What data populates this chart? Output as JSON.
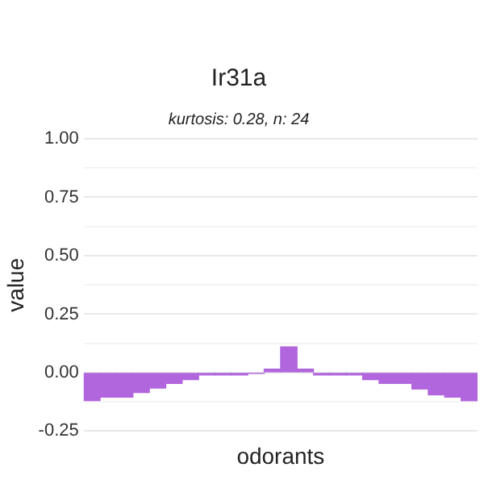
{
  "chart_data": {
    "type": "bar",
    "title": "Ir31a",
    "subtitle": "kurtosis: 0.28, n: 24",
    "xlabel": "odorants",
    "ylabel": "value",
    "categories": [
      null,
      null,
      null,
      null,
      null,
      null,
      null,
      null,
      null,
      null,
      null,
      null,
      null,
      null,
      null,
      null,
      null,
      null,
      null,
      null,
      null,
      null,
      null,
      null
    ],
    "values": [
      -0.12,
      -0.105,
      -0.105,
      -0.085,
      -0.066,
      -0.046,
      -0.03,
      -0.01,
      -0.01,
      -0.01,
      -0.003,
      0.015,
      0.11,
      0.015,
      -0.01,
      -0.01,
      -0.01,
      -0.03,
      -0.046,
      -0.046,
      -0.07,
      -0.095,
      -0.105,
      -0.12
    ],
    "color": "#b266dd",
    "ylim": [
      -0.25,
      1
    ],
    "yticks": [
      {
        "value": -0.25,
        "label": "-0.25"
      },
      {
        "value": -0.125,
        "label": null
      },
      {
        "value": 0,
        "label": "0.00"
      },
      {
        "value": 0.125,
        "label": null
      },
      {
        "value": 0.25,
        "label": "0.25"
      },
      {
        "value": 0.375,
        "label": null
      },
      {
        "value": 0.5,
        "label": "0.50"
      },
      {
        "value": 0.625,
        "label": null
      },
      {
        "value": 0.75,
        "label": "0.75"
      },
      {
        "value": 0.875,
        "label": null
      },
      {
        "value": 1,
        "label": "1.00"
      }
    ],
    "grid": "y",
    "tick_labels": "y"
  }
}
